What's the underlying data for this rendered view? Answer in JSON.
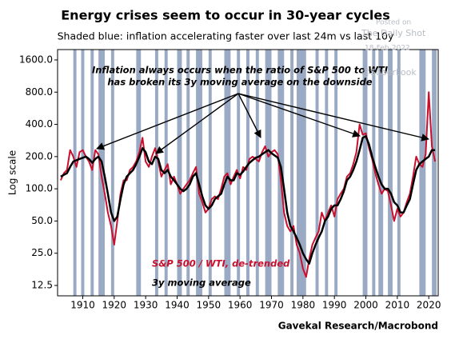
{
  "chart_data": {
    "type": "line",
    "title": "Energy crises seem to occur in 30-year cycles",
    "subtitle": "Shaded blue: inflation accelerating faster over last 24m vs last 10y",
    "y_label": "Log scale",
    "annotation": [
      "Inflation always occurs when the ratio of S&P 500 to WTI",
      "has broken its 3y moving average on the downside"
    ],
    "source": "Gavekal Research/Macrobond",
    "watermark": [
      "Posted on",
      "The Daily Shot",
      "18-Feb-2022",
      "@SoberLook"
    ],
    "log_scale": true,
    "shade_color": "#9aaac4",
    "shaded_ranges": [
      [
        1907,
        1908
      ],
      [
        1909.5,
        1910.5
      ],
      [
        1912.5,
        1913.5
      ],
      [
        1915,
        1917
      ],
      [
        1919,
        1920
      ],
      [
        1927,
        1928.5
      ],
      [
        1933,
        1934
      ],
      [
        1936,
        1937
      ],
      [
        1940,
        1941.5
      ],
      [
        1943,
        1944
      ],
      [
        1946,
        1948
      ],
      [
        1950,
        1951
      ],
      [
        1955,
        1957
      ],
      [
        1959,
        1960
      ],
      [
        1962,
        1963
      ],
      [
        1965,
        1966
      ],
      [
        1968,
        1970
      ],
      [
        1972,
        1974
      ],
      [
        1976,
        1977
      ],
      [
        1978,
        1981
      ],
      [
        1984,
        1985
      ],
      [
        1987,
        1988
      ],
      [
        1990,
        1991
      ],
      [
        1999,
        2000.5
      ],
      [
        2002,
        2003
      ],
      [
        2004,
        2005.5
      ],
      [
        2007,
        2008.5
      ],
      [
        2010,
        2011
      ],
      [
        2017,
        2019
      ],
      [
        2021,
        2022.5
      ]
    ],
    "xlim": [
      1902,
      2023
    ],
    "xticks": [
      1910,
      1920,
      1930,
      1940,
      1950,
      1960,
      1970,
      1980,
      1990,
      2000,
      2010,
      2020
    ],
    "ylim": [
      10,
      2000
    ],
    "yticks": [
      {
        "value": 12.5,
        "label": "12.5"
      },
      {
        "value": 25,
        "label": "25.0"
      },
      {
        "value": 50,
        "label": "50.0"
      },
      {
        "value": 100,
        "label": "100.0"
      },
      {
        "value": 200,
        "label": "200.0"
      },
      {
        "value": 400,
        "label": "400.0"
      },
      {
        "value": 800,
        "label": "800.0"
      },
      {
        "value": 1600,
        "label": "1600.0"
      }
    ],
    "x": [
      1903,
      1904,
      1905,
      1906,
      1907,
      1908,
      1909,
      1910,
      1911,
      1912,
      1913,
      1914,
      1915,
      1916,
      1917,
      1918,
      1919,
      1920,
      1921,
      1922,
      1923,
      1924,
      1925,
      1926,
      1927,
      1928,
      1929,
      1930,
      1931,
      1932,
      1933,
      1934,
      1935,
      1936,
      1937,
      1938,
      1939,
      1940,
      1941,
      1942,
      1943,
      1944,
      1945,
      1946,
      1947,
      1948,
      1949,
      1950,
      1951,
      1952,
      1953,
      1954,
      1955,
      1956,
      1957,
      1958,
      1959,
      1960,
      1961,
      1962,
      1963,
      1964,
      1965,
      1966,
      1967,
      1968,
      1969,
      1970,
      1971,
      1972,
      1973,
      1974,
      1975,
      1976,
      1977,
      1978,
      1979,
      1980,
      1981,
      1982,
      1983,
      1984,
      1985,
      1986,
      1987,
      1988,
      1989,
      1990,
      1991,
      1992,
      1993,
      1994,
      1995,
      1996,
      1997,
      1998,
      1999,
      2000,
      2001,
      2002,
      2003,
      2004,
      2005,
      2006,
      2007,
      2008,
      2009,
      2010,
      2011,
      2012,
      2013,
      2014,
      2015,
      2016,
      2017,
      2018,
      2019,
      2020,
      2021,
      2022
    ],
    "series": [
      {
        "name": "S&P 500 / WTI, de-trended",
        "color": "#c8102e",
        "width": 2,
        "values": [
          120,
          140,
          150,
          230,
          200,
          160,
          220,
          230,
          200,
          180,
          150,
          230,
          210,
          130,
          90,
          60,
          45,
          30,
          50,
          90,
          120,
          120,
          150,
          160,
          180,
          220,
          300,
          180,
          160,
          200,
          240,
          180,
          130,
          150,
          170,
          110,
          130,
          110,
          90,
          100,
          110,
          120,
          140,
          160,
          90,
          75,
          60,
          65,
          80,
          85,
          80,
          100,
          130,
          140,
          110,
          130,
          150,
          125,
          160,
          150,
          190,
          200,
          190,
          180,
          220,
          250,
          200,
          220,
          230,
          210,
          120,
          60,
          45,
          40,
          45,
          30,
          25,
          18,
          15,
          22,
          30,
          35,
          40,
          60,
          50,
          60,
          70,
          55,
          80,
          90,
          100,
          130,
          140,
          170,
          220,
          400,
          320,
          330,
          240,
          190,
          140,
          110,
          90,
          100,
          95,
          70,
          50,
          65,
          55,
          60,
          75,
          90,
          130,
          200,
          170,
          160,
          210,
          800,
          250,
          180
        ]
      },
      {
        "name": "3y moving average",
        "color": "#000000",
        "width": 2.5,
        "values": [
          130,
          135,
          140,
          160,
          180,
          185,
          190,
          195,
          200,
          190,
          175,
          190,
          200,
          180,
          130,
          90,
          60,
          50,
          55,
          80,
          110,
          130,
          140,
          150,
          170,
          200,
          240,
          220,
          180,
          170,
          200,
          190,
          150,
          140,
          150,
          130,
          120,
          110,
          100,
          95,
          100,
          110,
          130,
          140,
          110,
          85,
          70,
          65,
          70,
          80,
          85,
          90,
          110,
          130,
          120,
          120,
          140,
          135,
          145,
          160,
          175,
          185,
          195,
          200,
          210,
          220,
          230,
          215,
          205,
          195,
          160,
          100,
          60,
          45,
          40,
          35,
          30,
          25,
          22,
          20,
          25,
          30,
          35,
          40,
          50,
          55,
          65,
          70,
          70,
          80,
          95,
          120,
          130,
          150,
          180,
          230,
          300,
          310,
          260,
          200,
          160,
          130,
          110,
          100,
          100,
          90,
          75,
          70,
          60,
          60,
          70,
          80,
          110,
          150,
          170,
          180,
          190,
          200,
          230,
          230
        ]
      }
    ]
  }
}
